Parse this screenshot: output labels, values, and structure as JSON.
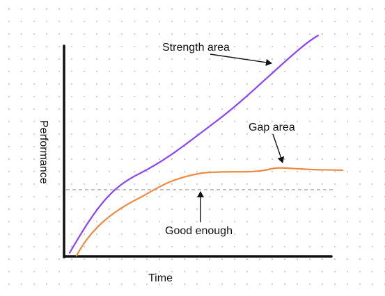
{
  "diagram": {
    "x_axis_label": "Time",
    "y_axis_label": "Performance",
    "annotations": {
      "strength": "Strength area",
      "gap": "Gap area",
      "threshold": "Good enough"
    }
  },
  "colors": {
    "strength_curve": "#8b45f2",
    "gap_curve": "#ee8a42",
    "threshold_line": "#a8a8a8",
    "axes": "#111111"
  }
}
